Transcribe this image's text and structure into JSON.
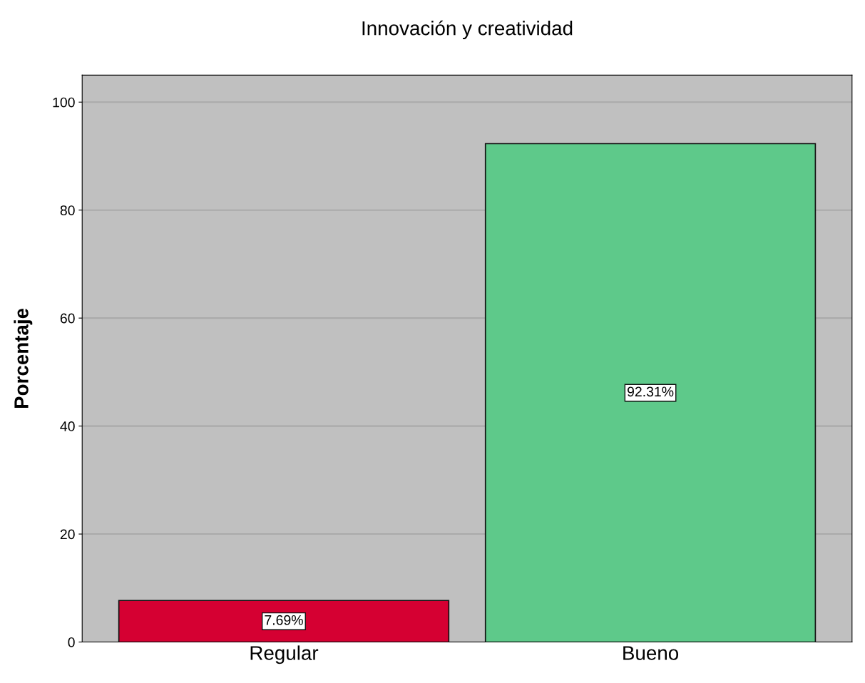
{
  "chart_data": {
    "type": "bar",
    "title": "Innovación y creatividad",
    "ylabel": "Porcentaje",
    "categories": [
      "Regular",
      "Bueno"
    ],
    "values": [
      7.69,
      92.31
    ],
    "colors": [
      "#d50032",
      "#5ec98a"
    ],
    "ylim": [
      0,
      105
    ],
    "yticks": [
      0,
      20,
      40,
      60,
      80,
      100
    ],
    "grid": "y",
    "data_labels": true,
    "value_labels": [
      "7.69%",
      "92.31%"
    ]
  }
}
